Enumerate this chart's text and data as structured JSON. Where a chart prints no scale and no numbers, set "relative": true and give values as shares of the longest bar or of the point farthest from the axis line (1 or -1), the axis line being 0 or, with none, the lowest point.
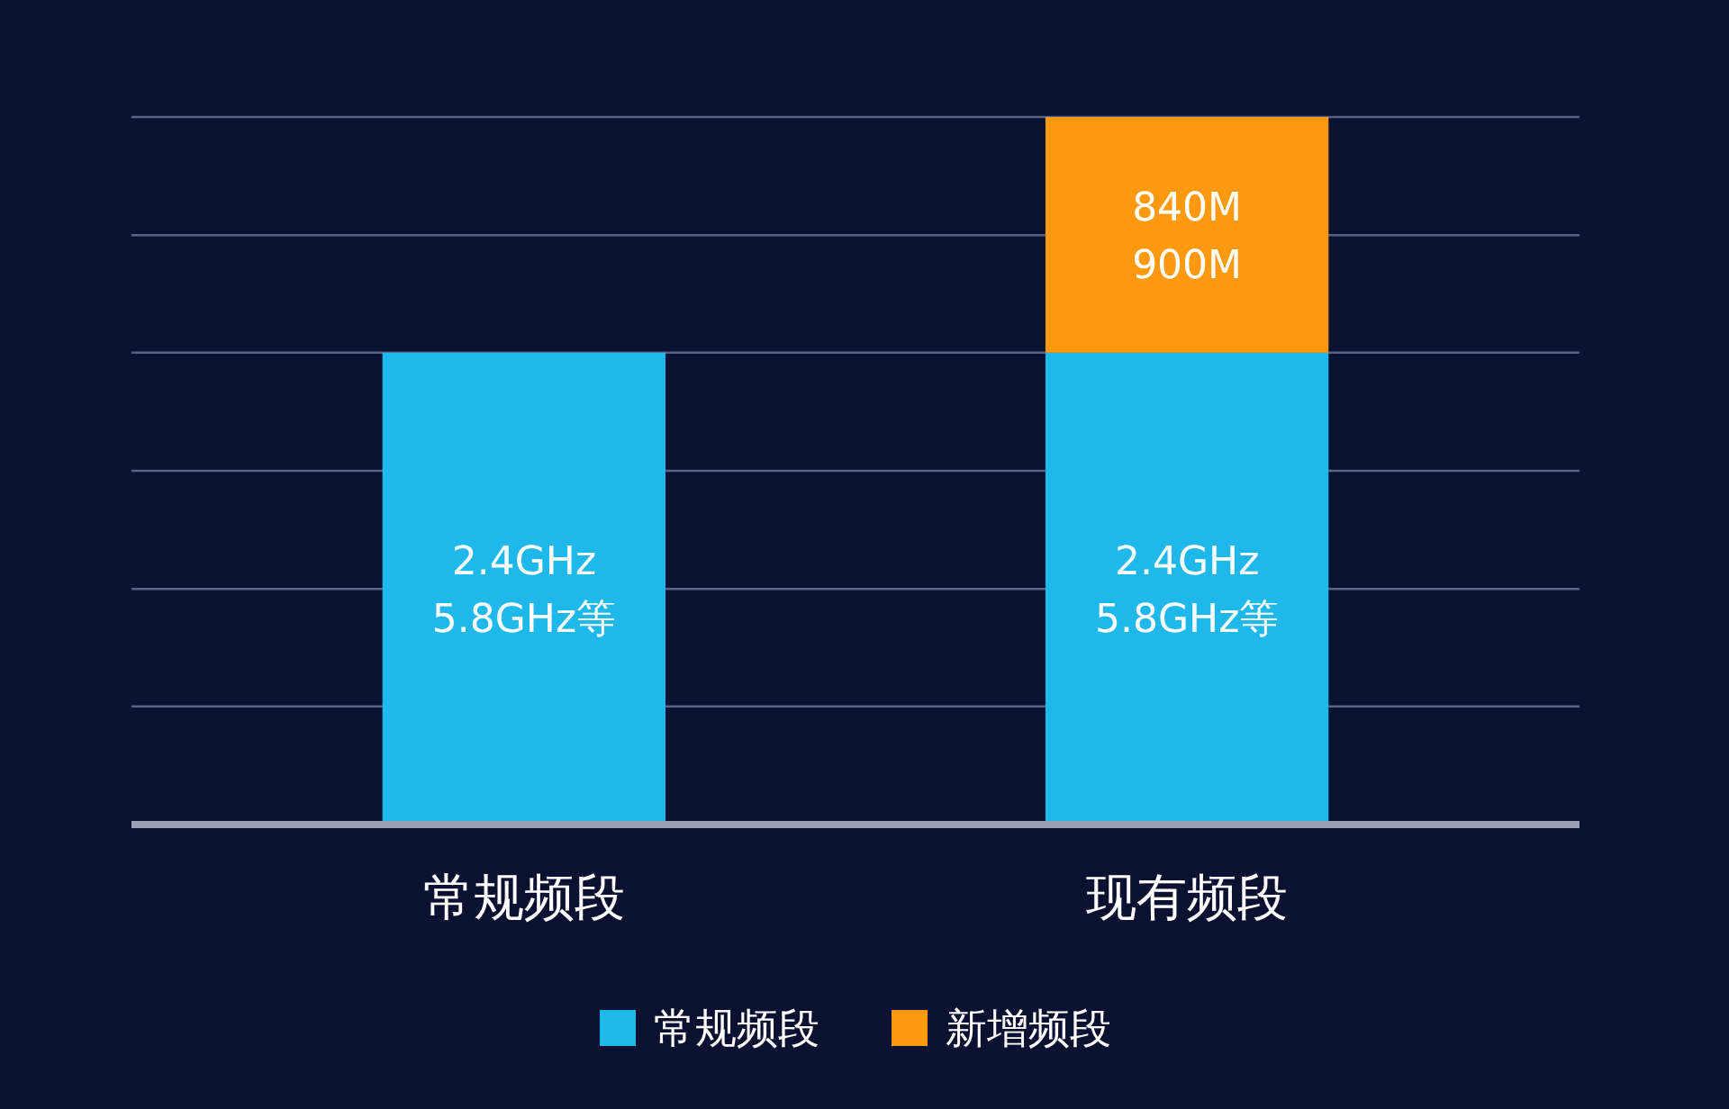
{
  "chart_data": {
    "type": "bar",
    "relative": true,
    "stacked": true,
    "legend": "bottom",
    "categories": [
      "常规频段",
      "现有频段"
    ],
    "series": [
      {
        "name": "常规频段",
        "color": "#1fb8ea",
        "values": [
          0.667,
          0.667
        ]
      },
      {
        "name": "新增频段",
        "color": "#ff9a10",
        "values": [
          null,
          0.333
        ]
      }
    ],
    "annotations": [
      {
        "text": "2.4GHz\n5.8GHz等",
        "x": "常规频段",
        "y": 0.333
      },
      {
        "text": "2.4GHz\n5.8GHz等",
        "x": "现有频段",
        "y": 0.333
      },
      {
        "text": "840M\n900M",
        "x": "现有频段",
        "y": 0.833
      }
    ],
    "ref_lines": [
      {
        "axis": "y",
        "value": 0.167,
        "color": "#5a6283"
      },
      {
        "axis": "y",
        "value": 0.333,
        "color": "#5a6283"
      },
      {
        "axis": "y",
        "value": 0.5,
        "color": "#5a6283"
      },
      {
        "axis": "y",
        "value": 0.667,
        "color": "#5a6283"
      },
      {
        "axis": "y",
        "value": 0.833,
        "color": "#5a6283"
      },
      {
        "axis": "y",
        "value": 1,
        "color": "#5a6283"
      }
    ]
  }
}
